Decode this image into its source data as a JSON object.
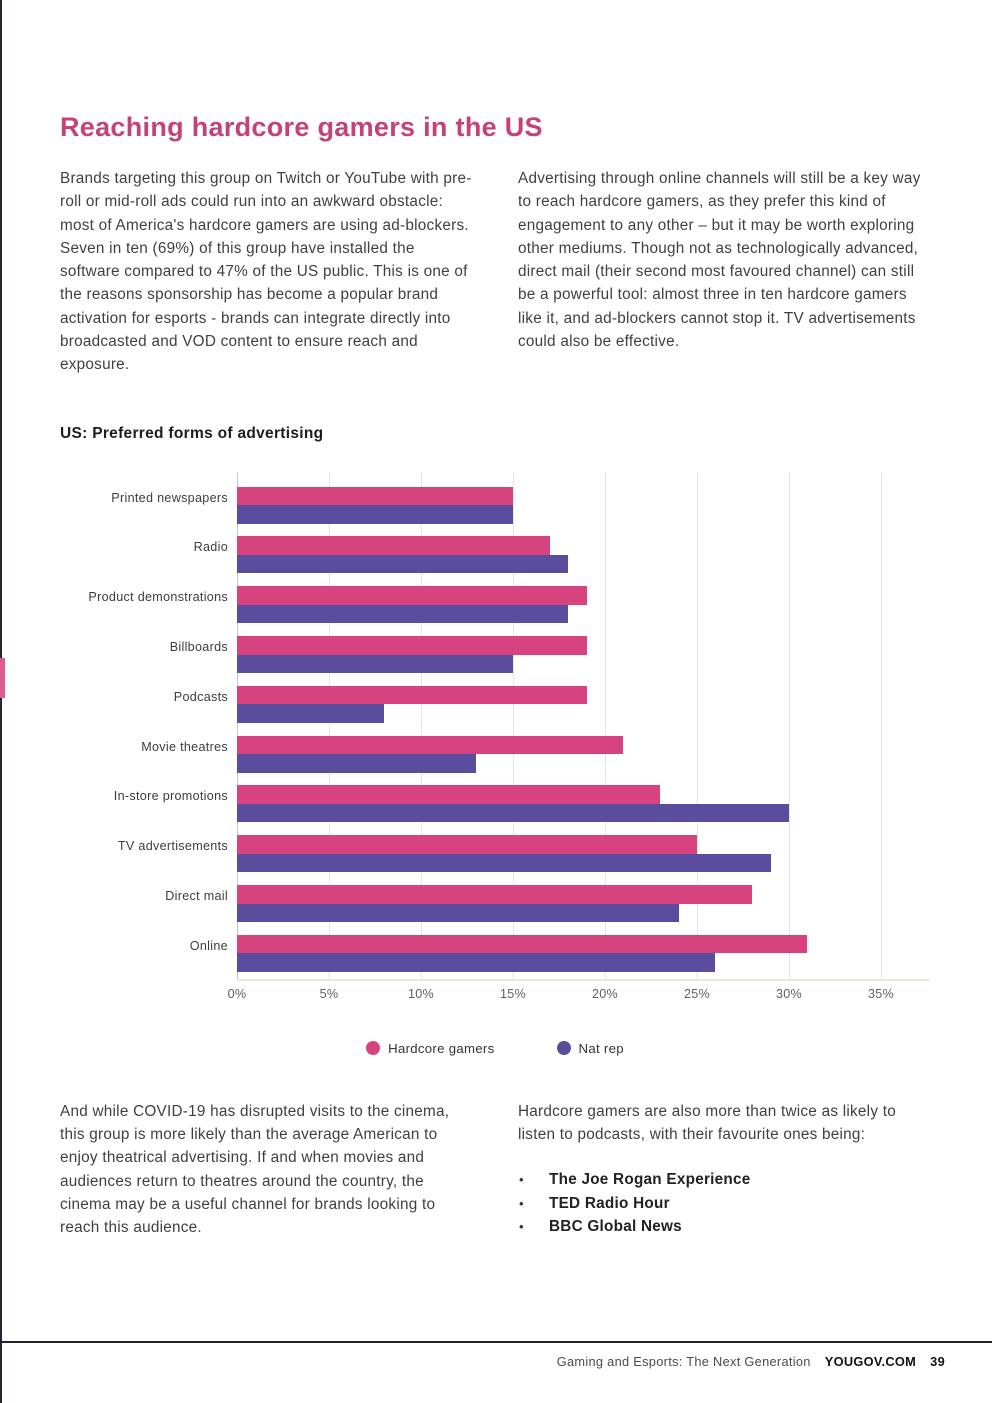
{
  "header": {
    "title": "Reaching hardcore gamers in the US"
  },
  "intro": {
    "left": "Brands targeting this group on Twitch or YouTube with pre-roll or mid-roll ads could run into an awkward obstacle: most of America's hardcore gamers are using ad-blockers. Seven in ten (69%) of this group have installed the software compared to 47% of the US public. This is one of the reasons sponsorship has become a popular brand activation for esports - brands can integrate directly into broadcasted and VOD content to ensure reach and exposure.",
    "right": "Advertising through online channels will still be a key way to reach hardcore gamers, as they prefer this kind of engagement to any other – but it may be worth exploring other mediums. Though not as technologically advanced, direct mail (their second most favoured channel) can still be a powerful tool: almost three in ten hardcore gamers like it, and ad-blockers cannot stop it. TV advertisements could also be effective."
  },
  "chart_heading": "US: Preferred forms of advertising",
  "chart_data": {
    "type": "bar",
    "orientation": "horizontal",
    "title": "US: Preferred forms of advertising",
    "categories": [
      "Printed newspapers",
      "Radio",
      "Product demonstrations",
      "Billboards",
      "Podcasts",
      "Movie theatres",
      "In-store promotions",
      "TV advertisements",
      "Direct mail",
      "Online"
    ],
    "series": [
      {
        "name": "Hardcore gamers",
        "color": "#d6437e",
        "values": [
          15,
          17,
          19,
          19,
          19,
          21,
          23,
          25,
          28,
          31
        ]
      },
      {
        "name": "Nat rep",
        "color": "#5b4d9d",
        "values": [
          15,
          18,
          18,
          15,
          8,
          13,
          30,
          29,
          24,
          26
        ]
      }
    ],
    "xlabel": "",
    "ylabel": "",
    "xlim": [
      0,
      35
    ],
    "x_ticks": [
      "0%",
      "5%",
      "10%",
      "15%",
      "20%",
      "25%",
      "30%",
      "35%"
    ],
    "unit": "%",
    "grid": true,
    "legend_position": "bottom"
  },
  "outro": {
    "left": "And while COVID-19 has disrupted visits to the cinema, this group is more likely than the average American to enjoy theatrical advertising. If and when movies and audiences return to theatres around the country, the cinema may be a useful channel for brands looking to reach this audience.",
    "right_lead": "Hardcore gamers are also more than twice as likely to listen to podcasts, with their favourite ones being:"
  },
  "podcasts": [
    "The Joe Rogan Experience",
    "TED Radio Hour",
    "BBC Global News"
  ],
  "footer": {
    "title": "Gaming and Esports: The Next Generation",
    "brand": "YOUGOV.COM",
    "page_number": "39"
  },
  "colors": {
    "title_pink": "#c5417c",
    "bar_pink": "#d6437e",
    "bar_purple": "#5b4d9d",
    "edge_accent_pink": "#de5b92",
    "footer_rule_dark": "#20202f"
  }
}
